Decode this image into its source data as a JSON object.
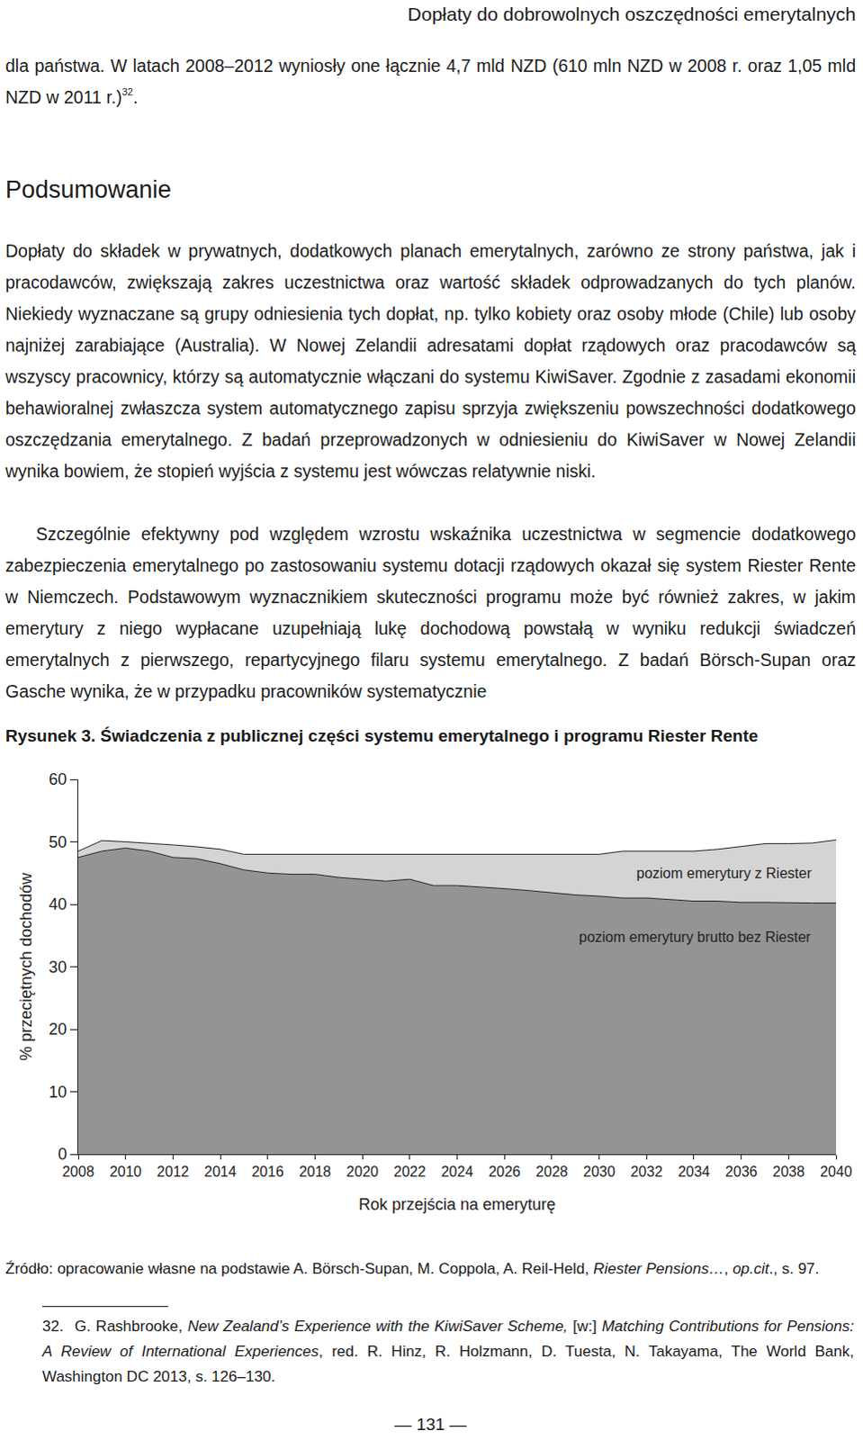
{
  "header": "Dopłaty do dobrowolnych oszczędności emerytalnych",
  "paragraph_1": [
    {
      "text": "dla państwa. W latach 2008–2012 wyniosły one łącznie 4,7 mld NZD (610 mln NZD w 2008 r. oraz 1,05 mld NZD w 2011 r.)"
    },
    {
      "text": "32",
      "style": "sup"
    },
    {
      "text": "."
    }
  ],
  "heading": "Podsumowanie",
  "paragraph_2": [
    {
      "text": "Dopłaty do składek w prywatnych, dodatkowych planach emerytalnych, zarówno ze strony państwa, jak i pracodawców, zwiększają zakres uczestnictwa oraz wartość składek odprowadzanych do tych planów. Niekiedy wyznaczane są grupy odniesienia tych dopłat, np. tylko kobiety oraz osoby młode (Chile) lub osoby najniżej zarabiające (Australia). W Nowej Zelandii adresatami dopłat rządowych oraz pracodawców są wszyscy pracownicy, którzy są automatycznie włączani do systemu KiwiSaver. Zgodnie z zasadami ekonomii behawioralnej zwłaszcza system automatycznego zapisu sprzyja zwiększeniu powszechności dodatkowego oszczędzania emerytalnego. Z badań przeprowadzonych w odniesieniu do KiwiSaver w Nowej Zelandii wynika bowiem, że stopień wyjścia z systemu jest wówczas relatywnie niski."
    }
  ],
  "paragraph_3": [
    {
      "text": "Szczególnie efektywny pod względem wzrostu wskaźnika uczestnictwa w segmencie dodatkowego zabezpieczenia emerytalnego po zastosowaniu systemu dotacji rządowych okazał się system Riester Rente w Niemczech. Podstawowym wyznacznikiem skuteczności programu może być również zakres, w jakim emerytury z niego wypłacane uzupełniają lukę dochodową powstałą w wyniku redukcji świadczeń emerytalnych z pierwszego, repartycyjnego filaru systemu emerytalnego. Z badań Börsch-Supan oraz Gasche wynika, że w przypadku pracowników systematycznie"
    }
  ],
  "caption": [
    {
      "text": "Rysunek 3. ",
      "style": "bold"
    },
    {
      "text": "Świadczenia z publicznej części systemu emerytalnego i programu Riester Rente",
      "style": "bold"
    }
  ],
  "chart_data": {
    "type": "area",
    "stacked": true,
    "grid": false,
    "xlabel": "Rok przejścia na emeryturę",
    "ylabel": "% przeciętnych dochodów",
    "x": [
      2008,
      2009,
      2010,
      2011,
      2012,
      2013,
      2014,
      2015,
      2016,
      2017,
      2018,
      2019,
      2020,
      2021,
      2022,
      2023,
      2024,
      2025,
      2026,
      2027,
      2028,
      2029,
      2030,
      2031,
      2032,
      2033,
      2034,
      2035,
      2036,
      2037,
      2038,
      2039,
      2040
    ],
    "series": [
      {
        "name": "poziom emerytury brutto bez Riester",
        "color": "#949494",
        "values": [
          47.5,
          48.5,
          49.0,
          48.5,
          47.5,
          47.3,
          46.5,
          45.5,
          45.0,
          44.8,
          44.8,
          44.3,
          44.0,
          43.7,
          44.0,
          43.0,
          43.0,
          42.8,
          42.5,
          42.2,
          41.8,
          41.5,
          41.3,
          41.0,
          41.0,
          40.8,
          40.5,
          40.5,
          40.3,
          40.3,
          40.2,
          40.2,
          40.2
        ]
      },
      {
        "name": "poziom emerytury z Riester",
        "color": "#d4d4d4",
        "values": [
          1.0,
          1.7,
          1.0,
          1.3,
          2.0,
          1.9,
          2.3,
          2.5,
          3.0,
          3.2,
          3.2,
          3.7,
          4.0,
          4.3,
          4.0,
          5.0,
          5.0,
          5.2,
          5.5,
          5.8,
          6.2,
          6.5,
          6.7,
          7.5,
          7.5,
          7.7,
          8.0,
          8.3,
          9.0,
          9.4,
          9.5,
          9.6,
          10.1
        ]
      }
    ],
    "xlim": [
      2008,
      2040
    ],
    "xticks": [
      2008,
      2010,
      2012,
      2014,
      2016,
      2018,
      2020,
      2022,
      2024,
      2026,
      2028,
      2030,
      2032,
      2034,
      2036,
      2038,
      2040
    ],
    "ylim": [
      0,
      60
    ],
    "yticks": [
      0,
      10,
      20,
      30,
      40,
      50,
      60
    ]
  },
  "source": [
    {
      "text": "Źródło: opracowanie własne na podstawie A. Börsch-Supan, M. Coppola, A. Reil-Held, "
    },
    {
      "text": "Riester Pensions…",
      "style": "italic"
    },
    {
      "text": ", "
    },
    {
      "text": "op.cit",
      "style": "italic"
    },
    {
      "text": "., s. 97."
    }
  ],
  "footnote": {
    "number": "32.",
    "segments": [
      {
        "text": "G. Rashbrooke, "
      },
      {
        "text": "New Zealand’s Experience with the KiwiSaver Scheme,",
        "style": "italic"
      },
      {
        "text": " [w:] "
      },
      {
        "text": "Matching Contributions for Pensions: A Review of International Experiences",
        "style": "italic"
      },
      {
        "text": ", red. R. Hinz, R. Holzmann, D. Tuesta, N. Takayama, The World Bank, Washington DC 2013, s. 126–130."
      }
    ]
  },
  "page_number": "— 131 —"
}
